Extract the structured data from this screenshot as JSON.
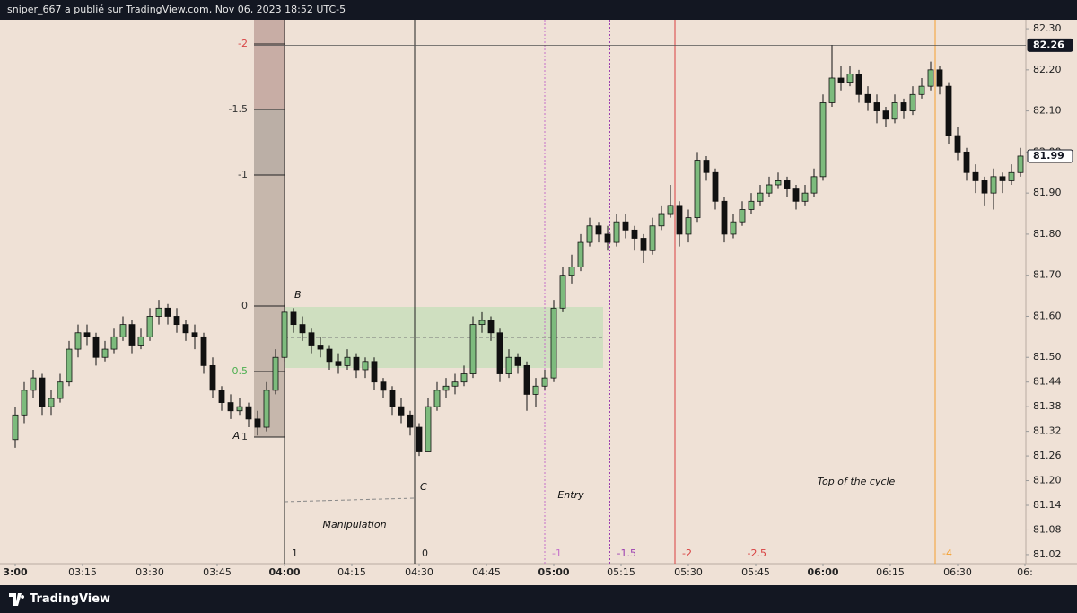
{
  "header": "sniper_667 a publié sur TradingView.com, Nov 06, 2023 18:52 UTC-5",
  "footer": "TradingView",
  "chart_data": {
    "type": "candlestick",
    "x": [
      0,
      2,
      4,
      6,
      8,
      10,
      12,
      14,
      16,
      18,
      20,
      22,
      24,
      26,
      28,
      30,
      32,
      34,
      36,
      38,
      40,
      42,
      44,
      46,
      48,
      50,
      52,
      54,
      56,
      58,
      60,
      62,
      64,
      66,
      68,
      70,
      72,
      74,
      76,
      78,
      80,
      82,
      84,
      86,
      88,
      90,
      92,
      94,
      96,
      98,
      100,
      102,
      104,
      106,
      108,
      110,
      112,
      114,
      116,
      118,
      120,
      122,
      124,
      126,
      128,
      130,
      132,
      134,
      136,
      138,
      140,
      142,
      144,
      146,
      148,
      150,
      152,
      154,
      156,
      158,
      160,
      162,
      164,
      166,
      168,
      170,
      172,
      174,
      176,
      178,
      180,
      182,
      184,
      186,
      188,
      190,
      192,
      194,
      196,
      198,
      200,
      202,
      204,
      206,
      208,
      210,
      212,
      214,
      216,
      218,
      220,
      222,
      224
    ],
    "candles": [
      [
        81.3,
        81.38,
        81.28,
        81.36
      ],
      [
        81.36,
        81.44,
        81.34,
        81.42
      ],
      [
        81.42,
        81.47,
        81.4,
        81.45
      ],
      [
        81.45,
        81.46,
        81.36,
        81.38
      ],
      [
        81.38,
        81.42,
        81.36,
        81.4
      ],
      [
        81.4,
        81.46,
        81.39,
        81.44
      ],
      [
        81.44,
        81.54,
        81.43,
        81.52
      ],
      [
        81.52,
        81.58,
        81.5,
        81.56
      ],
      [
        81.56,
        81.58,
        81.53,
        81.55
      ],
      [
        81.55,
        81.56,
        81.48,
        81.5
      ],
      [
        81.5,
        81.54,
        81.49,
        81.52
      ],
      [
        81.52,
        81.57,
        81.51,
        81.55
      ],
      [
        81.55,
        81.6,
        81.54,
        81.58
      ],
      [
        81.58,
        81.59,
        81.51,
        81.53
      ],
      [
        81.53,
        81.57,
        81.52,
        81.55
      ],
      [
        81.55,
        81.62,
        81.54,
        81.6
      ],
      [
        81.6,
        81.64,
        81.58,
        81.62
      ],
      [
        81.62,
        81.63,
        81.58,
        81.6
      ],
      [
        81.6,
        81.62,
        81.56,
        81.58
      ],
      [
        81.58,
        81.59,
        81.54,
        81.56
      ],
      [
        81.56,
        81.58,
        81.52,
        81.55
      ],
      [
        81.55,
        81.56,
        81.46,
        81.48
      ],
      [
        81.48,
        81.5,
        81.4,
        81.42
      ],
      [
        81.42,
        81.43,
        81.37,
        81.39
      ],
      [
        81.39,
        81.41,
        81.35,
        81.37
      ],
      [
        81.37,
        81.4,
        81.36,
        81.38
      ],
      [
        81.38,
        81.39,
        81.33,
        81.35
      ],
      [
        81.35,
        81.37,
        81.31,
        81.33
      ],
      [
        81.33,
        81.44,
        81.32,
        81.42
      ],
      [
        81.42,
        81.52,
        81.41,
        81.5
      ],
      [
        81.5,
        81.63,
        81.49,
        81.61
      ],
      [
        81.61,
        81.62,
        81.56,
        81.58
      ],
      [
        81.58,
        81.6,
        81.54,
        81.56
      ],
      [
        81.56,
        81.57,
        81.51,
        81.53
      ],
      [
        81.53,
        81.55,
        81.5,
        81.52
      ],
      [
        81.52,
        81.53,
        81.47,
        81.49
      ],
      [
        81.49,
        81.51,
        81.46,
        81.48
      ],
      [
        81.48,
        81.52,
        81.47,
        81.5
      ],
      [
        81.5,
        81.51,
        81.45,
        81.47
      ],
      [
        81.47,
        81.5,
        81.45,
        81.49
      ],
      [
        81.49,
        81.5,
        81.42,
        81.44
      ],
      [
        81.44,
        81.45,
        81.4,
        81.42
      ],
      [
        81.42,
        81.43,
        81.36,
        81.38
      ],
      [
        81.38,
        81.4,
        81.34,
        81.36
      ],
      [
        81.36,
        81.37,
        81.31,
        81.33
      ],
      [
        81.33,
        81.34,
        81.26,
        81.27
      ],
      [
        81.27,
        81.4,
        81.27,
        81.38
      ],
      [
        81.38,
        81.44,
        81.37,
        81.42
      ],
      [
        81.42,
        81.45,
        81.4,
        81.43
      ],
      [
        81.43,
        81.46,
        81.41,
        81.44
      ],
      [
        81.44,
        81.48,
        81.43,
        81.46
      ],
      [
        81.46,
        81.6,
        81.45,
        81.58
      ],
      [
        81.58,
        81.61,
        81.56,
        81.59
      ],
      [
        81.59,
        81.6,
        81.54,
        81.56
      ],
      [
        81.56,
        81.57,
        81.44,
        81.46
      ],
      [
        81.46,
        81.52,
        81.45,
        81.5
      ],
      [
        81.5,
        81.51,
        81.46,
        81.48
      ],
      [
        81.48,
        81.49,
        81.37,
        81.41
      ],
      [
        81.41,
        81.45,
        81.38,
        81.43
      ],
      [
        81.43,
        81.47,
        81.42,
        81.45
      ],
      [
        81.45,
        81.64,
        81.44,
        81.62
      ],
      [
        81.62,
        81.72,
        81.61,
        81.7
      ],
      [
        81.7,
        81.75,
        81.68,
        81.72
      ],
      [
        81.72,
        81.8,
        81.71,
        81.78
      ],
      [
        81.78,
        81.84,
        81.77,
        81.82
      ],
      [
        81.82,
        81.83,
        81.78,
        81.8
      ],
      [
        81.8,
        81.82,
        81.76,
        81.78
      ],
      [
        81.78,
        81.85,
        81.77,
        81.83
      ],
      [
        81.83,
        81.85,
        81.79,
        81.81
      ],
      [
        81.81,
        81.82,
        81.76,
        81.79
      ],
      [
        81.79,
        81.8,
        81.73,
        81.76
      ],
      [
        81.76,
        81.84,
        81.75,
        81.82
      ],
      [
        81.82,
        81.87,
        81.81,
        81.85
      ],
      [
        81.85,
        81.92,
        81.84,
        81.87
      ],
      [
        81.87,
        81.88,
        81.77,
        81.8
      ],
      [
        81.8,
        81.86,
        81.78,
        81.84
      ],
      [
        81.84,
        82.0,
        81.83,
        81.98
      ],
      [
        81.98,
        81.99,
        81.93,
        81.95
      ],
      [
        81.95,
        81.96,
        81.86,
        81.88
      ],
      [
        81.88,
        81.89,
        81.78,
        81.8
      ],
      [
        81.8,
        81.85,
        81.79,
        81.83
      ],
      [
        81.83,
        81.88,
        81.82,
        81.86
      ],
      [
        81.86,
        81.9,
        81.85,
        81.88
      ],
      [
        81.88,
        81.92,
        81.87,
        81.9
      ],
      [
        81.9,
        81.94,
        81.89,
        81.92
      ],
      [
        81.92,
        81.95,
        81.91,
        81.93
      ],
      [
        81.93,
        81.94,
        81.89,
        81.91
      ],
      [
        81.91,
        81.92,
        81.86,
        81.88
      ],
      [
        81.88,
        81.92,
        81.87,
        81.9
      ],
      [
        81.9,
        81.96,
        81.89,
        81.94
      ],
      [
        81.94,
        82.14,
        81.93,
        82.12
      ],
      [
        82.12,
        82.26,
        82.11,
        82.18
      ],
      [
        82.18,
        82.21,
        82.15,
        82.17
      ],
      [
        82.17,
        82.21,
        82.16,
        82.19
      ],
      [
        82.19,
        82.2,
        82.12,
        82.14
      ],
      [
        82.14,
        82.16,
        82.1,
        82.12
      ],
      [
        82.12,
        82.14,
        82.07,
        82.1
      ],
      [
        82.1,
        82.11,
        82.06,
        82.08
      ],
      [
        82.08,
        82.14,
        82.07,
        82.12
      ],
      [
        82.12,
        82.13,
        82.08,
        82.1
      ],
      [
        82.1,
        82.16,
        82.09,
        82.14
      ],
      [
        82.14,
        82.18,
        82.13,
        82.16
      ],
      [
        82.16,
        82.22,
        82.15,
        82.2
      ],
      [
        82.2,
        82.21,
        82.14,
        82.16
      ],
      [
        82.16,
        82.17,
        82.02,
        82.04
      ],
      [
        82.04,
        82.06,
        81.98,
        82.0
      ],
      [
        82.0,
        82.01,
        81.93,
        81.95
      ],
      [
        81.95,
        81.97,
        81.9,
        81.93
      ],
      [
        81.93,
        81.94,
        81.87,
        81.9
      ],
      [
        81.9,
        81.96,
        81.86,
        81.94
      ],
      [
        81.94,
        81.95,
        81.9,
        81.93
      ],
      [
        81.93,
        81.97,
        81.92,
        81.95
      ],
      [
        81.95,
        82.01,
        81.94,
        81.99
      ]
    ],
    "up_color": "#7dbb7d",
    "down_color": "#111111",
    "xlim": [
      -3.4,
      225.2
    ],
    "xticks": [
      {
        "value": 0,
        "label": "3:00"
      },
      {
        "value": 15,
        "label": "03:15"
      },
      {
        "value": 30,
        "label": "03:30"
      },
      {
        "value": 45,
        "label": "03:45"
      },
      {
        "value": 60,
        "label": "04:00"
      },
      {
        "value": 75,
        "label": "04:15"
      },
      {
        "value": 90,
        "label": "04:30"
      },
      {
        "value": 105,
        "label": "04:45"
      },
      {
        "value": 120,
        "label": "05:00"
      },
      {
        "value": 135,
        "label": "05:15"
      },
      {
        "value": 150,
        "label": "05:30"
      },
      {
        "value": 165,
        "label": "05:45"
      },
      {
        "value": 180,
        "label": "06:00"
      },
      {
        "value": 195,
        "label": "06:15"
      },
      {
        "value": 210,
        "label": "06:30"
      },
      {
        "value": 225,
        "label": "06:"
      }
    ],
    "ylim": [
      80.998,
      82.322
    ],
    "yticks": [
      {
        "value": 82.3,
        "label": "82.30"
      },
      {
        "value": 82.2,
        "label": "82.20"
      },
      {
        "value": 82.1,
        "label": "82.10"
      },
      {
        "value": 82,
        "label": "82.00"
      },
      {
        "value": 81.9,
        "label": "81.90"
      },
      {
        "value": 81.8,
        "label": "81.80"
      },
      {
        "value": 81.7,
        "label": "81.70"
      },
      {
        "value": 81.6,
        "label": "81.60"
      },
      {
        "value": 81.5,
        "label": "81.50"
      },
      81.44,
      81.38,
      81.32,
      81.26,
      {
        "value": 81.2,
        "label": "81.20"
      },
      81.14,
      81.08,
      81.02
    ],
    "crosshair_price": 82.26,
    "last_price": 81.99,
    "fib": {
      "price_0": 81.625,
      "price_1": 81.306,
      "levels": [
        -2,
        -1.5,
        -1,
        0,
        0.5,
        1
      ],
      "colors": [
        "#d84545",
        "#333333",
        "#333333",
        "#333333",
        "#4caf50",
        "#333333"
      ]
    },
    "time_fib": {
      "time_1": 60,
      "time_0": 89,
      "levels": [
        1,
        0,
        -1,
        -1.5,
        -2,
        -2.5,
        -4
      ],
      "colors": [
        "#222222",
        "#222222",
        "#c46fc9",
        "#9c40b0",
        "#d84040",
        "#d84040",
        "#f5a030"
      ],
      "dashed": [
        false,
        false,
        true,
        true,
        false,
        false,
        false
      ]
    },
    "annotations": [
      "B",
      "A",
      "C",
      "Entry",
      "Manipulation",
      "Top of the cycle"
    ]
  }
}
